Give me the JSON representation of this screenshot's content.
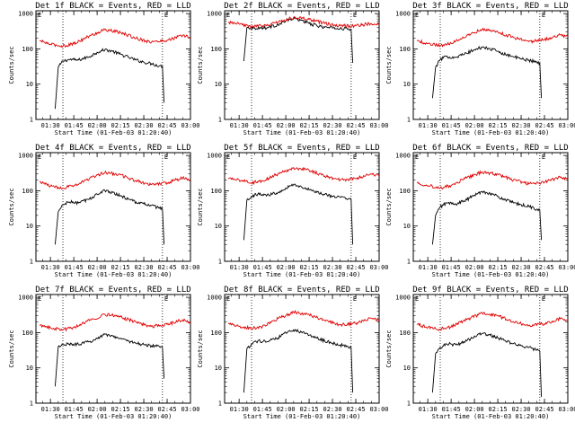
{
  "figure": {
    "ylabel": "Counts/sec",
    "xlabel": "Start Time (01-Feb-03 01:20:40)",
    "colors": {
      "events": "#000000",
      "lld": "#e00000"
    }
  },
  "chart_data": [
    {
      "type": "line",
      "title": "Det 1f BLACK = Events, RED = LLD",
      "xlabel": "Start Time (01-Feb-03 01:20:40)",
      "ylabel": "Counts/sec",
      "x_unit": "UT time",
      "xlim": [
        "01:20:40",
        "03:00"
      ],
      "ylim": [
        1,
        1200
      ],
      "yscale": "log",
      "xticks": [
        "01:30",
        "01:45",
        "02:00",
        "02:15",
        "02:30",
        "02:45",
        "03:00"
      ],
      "yticks": [
        "1",
        "10",
        "100",
        "1000"
      ],
      "markers": [
        "01:38",
        "02:42"
      ],
      "corner_labels": [
        "E",
        "E"
      ],
      "grid": false,
      "series": [
        {
          "name": "Events",
          "color": "#000000",
          "x": [
            "01:33",
            "01:35",
            "01:38",
            "01:42",
            "01:48",
            "01:55",
            "02:00",
            "02:05",
            "02:10",
            "02:15",
            "02:20",
            "02:25",
            "02:30",
            "02:35",
            "02:40",
            "02:42",
            "02:43"
          ],
          "y": [
            2,
            30,
            45,
            50,
            48,
            60,
            80,
            95,
            85,
            70,
            58,
            48,
            42,
            38,
            33,
            32,
            3
          ]
        },
        {
          "name": "LLD",
          "color": "#e00000",
          "x": [
            "01:23",
            "01:30",
            "01:38",
            "01:45",
            "01:55",
            "02:05",
            "02:15",
            "02:25",
            "02:35",
            "02:45",
            "02:55",
            "03:00"
          ],
          "y": [
            170,
            135,
            120,
            140,
            230,
            350,
            290,
            200,
            155,
            175,
            240,
            210
          ]
        }
      ]
    },
    {
      "type": "line",
      "title": "Det 2f BLACK = Events, RED = LLD",
      "xlabel": "Start Time (01-Feb-03 01:20:40)",
      "ylabel": "Counts/sec",
      "x_unit": "UT time",
      "xlim": [
        "01:20:40",
        "03:00"
      ],
      "ylim": [
        1,
        1200
      ],
      "yscale": "log",
      "xticks": [
        "01:30",
        "01:45",
        "02:00",
        "02:15",
        "02:30",
        "02:45",
        "03:00"
      ],
      "yticks": [
        "1",
        "10",
        "100",
        "1000"
      ],
      "markers": [
        "01:38",
        "02:42"
      ],
      "corner_labels": [
        "E",
        "E"
      ],
      "grid": false,
      "series": [
        {
          "name": "Events",
          "color": "#000000",
          "x": [
            "01:33",
            "01:35",
            "01:40",
            "01:48",
            "01:55",
            "02:00",
            "02:05",
            "02:10",
            "02:15",
            "02:20",
            "02:25",
            "02:30",
            "02:35",
            "02:40",
            "02:42",
            "02:43"
          ],
          "y": [
            45,
            400,
            390,
            400,
            480,
            620,
            720,
            650,
            520,
            450,
            410,
            390,
            380,
            370,
            360,
            40
          ]
        },
        {
          "name": "LLD",
          "color": "#e00000",
          "x": [
            "01:23",
            "01:30",
            "01:38",
            "01:45",
            "01:55",
            "02:05",
            "02:15",
            "02:25",
            "02:35",
            "02:45",
            "02:55",
            "03:00"
          ],
          "y": [
            560,
            500,
            430,
            450,
            560,
            780,
            680,
            520,
            450,
            450,
            520,
            480
          ]
        }
      ]
    },
    {
      "type": "line",
      "title": "Det 3f BLACK = Events, RED = LLD",
      "xlabel": "Start Time (01-Feb-03 01:20:40)",
      "ylabel": "Counts/sec",
      "x_unit": "UT time",
      "xlim": [
        "01:20:40",
        "03:00"
      ],
      "ylim": [
        1,
        1200
      ],
      "yscale": "log",
      "xticks": [
        "01:30",
        "01:45",
        "02:00",
        "02:15",
        "02:30",
        "02:45",
        "03:00"
      ],
      "yticks": [
        "1",
        "10",
        "100",
        "1000"
      ],
      "markers": [
        "01:38",
        "02:42"
      ],
      "corner_labels": [
        "E",
        "E"
      ],
      "grid": false,
      "series": [
        {
          "name": "Events",
          "color": "#000000",
          "x": [
            "01:33",
            "01:35",
            "01:38",
            "01:42",
            "01:48",
            "01:55",
            "02:00",
            "02:05",
            "02:10",
            "02:15",
            "02:20",
            "02:25",
            "02:30",
            "02:35",
            "02:40",
            "02:42",
            "02:43"
          ],
          "y": [
            4,
            30,
            50,
            60,
            58,
            75,
            95,
            110,
            100,
            85,
            70,
            60,
            52,
            48,
            42,
            40,
            4
          ]
        },
        {
          "name": "LLD",
          "color": "#e00000",
          "x": [
            "01:23",
            "01:30",
            "01:38",
            "01:45",
            "01:55",
            "02:05",
            "02:15",
            "02:25",
            "02:35",
            "02:45",
            "02:55",
            "03:00"
          ],
          "y": [
            170,
            140,
            125,
            145,
            240,
            360,
            300,
            210,
            160,
            180,
            250,
            220
          ]
        }
      ]
    },
    {
      "type": "line",
      "title": "Det 4f BLACK = Events, RED = LLD",
      "xlabel": "Start Time (01-Feb-03 01:20:40)",
      "ylabel": "Counts/sec",
      "x_unit": "UT time",
      "xlim": [
        "01:20:40",
        "03:00"
      ],
      "ylim": [
        1,
        1200
      ],
      "yscale": "log",
      "xticks": [
        "01:30",
        "01:45",
        "02:00",
        "02:15",
        "02:30",
        "02:45",
        "03:00"
      ],
      "yticks": [
        "1",
        "10",
        "100",
        "1000"
      ],
      "markers": [
        "01:38",
        "02:42"
      ],
      "corner_labels": [
        "E",
        "E"
      ],
      "grid": false,
      "series": [
        {
          "name": "Events",
          "color": "#000000",
          "x": [
            "01:33",
            "01:35",
            "01:38",
            "01:42",
            "01:48",
            "01:55",
            "02:00",
            "02:05",
            "02:10",
            "02:15",
            "02:20",
            "02:25",
            "02:30",
            "02:35",
            "02:40",
            "02:42",
            "02:43"
          ],
          "y": [
            3,
            25,
            40,
            48,
            45,
            58,
            80,
            100,
            90,
            72,
            58,
            48,
            42,
            38,
            32,
            30,
            3
          ]
        },
        {
          "name": "LLD",
          "color": "#e00000",
          "x": [
            "01:23",
            "01:30",
            "01:38",
            "01:45",
            "01:55",
            "02:05",
            "02:15",
            "02:25",
            "02:35",
            "02:45",
            "02:55",
            "03:00"
          ],
          "y": [
            180,
            135,
            120,
            140,
            220,
            330,
            280,
            190,
            150,
            170,
            230,
            200
          ]
        }
      ]
    },
    {
      "type": "line",
      "title": "Det 5f BLACK = Events, RED = LLD",
      "xlabel": "Start Time (01-Feb-03 01:20:40)",
      "ylabel": "Counts/sec",
      "x_unit": "UT time",
      "xlim": [
        "01:20:40",
        "03:00"
      ],
      "ylim": [
        1,
        1200
      ],
      "yscale": "log",
      "xticks": [
        "01:30",
        "01:45",
        "02:00",
        "02:15",
        "02:30",
        "02:45",
        "03:00"
      ],
      "yticks": [
        "1",
        "10",
        "100",
        "1000"
      ],
      "markers": [
        "01:38",
        "02:42"
      ],
      "corner_labels": [
        "E",
        "E"
      ],
      "grid": false,
      "series": [
        {
          "name": "Events",
          "color": "#000000",
          "x": [
            "01:33",
            "01:35",
            "01:38",
            "01:42",
            "01:48",
            "01:55",
            "02:00",
            "02:05",
            "02:10",
            "02:15",
            "02:20",
            "02:25",
            "02:30",
            "02:35",
            "02:40",
            "02:42",
            "02:43"
          ],
          "y": [
            4,
            55,
            70,
            80,
            75,
            90,
            120,
            150,
            130,
            105,
            90,
            78,
            70,
            65,
            58,
            55,
            3
          ]
        },
        {
          "name": "LLD",
          "color": "#e00000",
          "x": [
            "01:23",
            "01:30",
            "01:38",
            "01:45",
            "01:55",
            "02:05",
            "02:15",
            "02:25",
            "02:35",
            "02:45",
            "02:55",
            "03:00"
          ],
          "y": [
            220,
            200,
            170,
            190,
            300,
            450,
            380,
            260,
            200,
            220,
            300,
            270
          ]
        }
      ]
    },
    {
      "type": "line",
      "title": "Det 6f BLACK = Events, RED = LLD",
      "xlabel": "Start Time (01-Feb-03 01:20:40)",
      "ylabel": "Counts/sec",
      "x_unit": "UT time",
      "xlim": [
        "01:20:40",
        "03:00"
      ],
      "ylim": [
        1,
        1200
      ],
      "yscale": "log",
      "xticks": [
        "01:30",
        "01:45",
        "02:00",
        "02:15",
        "02:30",
        "02:45",
        "03:00"
      ],
      "yticks": [
        "1",
        "10",
        "100",
        "1000"
      ],
      "markers": [
        "01:38",
        "02:42"
      ],
      "corner_labels": [
        "E",
        "E"
      ],
      "grid": false,
      "series": [
        {
          "name": "Events",
          "color": "#000000",
          "x": [
            "01:33",
            "01:35",
            "01:38",
            "01:42",
            "01:48",
            "01:55",
            "02:00",
            "02:05",
            "02:10",
            "02:15",
            "02:20",
            "02:25",
            "02:30",
            "02:35",
            "02:40",
            "02:42",
            "02:43"
          ],
          "y": [
            3,
            20,
            35,
            45,
            42,
            55,
            75,
            95,
            85,
            68,
            55,
            45,
            40,
            36,
            30,
            28,
            4
          ]
        },
        {
          "name": "LLD",
          "color": "#e00000",
          "x": [
            "01:23",
            "01:30",
            "01:38",
            "01:45",
            "01:55",
            "02:05",
            "02:15",
            "02:25",
            "02:35",
            "02:45",
            "02:55",
            "03:00"
          ],
          "y": [
            170,
            140,
            120,
            140,
            230,
            340,
            290,
            200,
            155,
            175,
            240,
            210
          ]
        }
      ]
    },
    {
      "type": "line",
      "title": "Det 7f BLACK = Events, RED = LLD",
      "xlabel": "Start Time (01-Feb-03 01:20:40)",
      "ylabel": "Counts/sec",
      "x_unit": "UT time",
      "xlim": [
        "01:20:40",
        "03:00"
      ],
      "ylim": [
        1,
        1200
      ],
      "yscale": "log",
      "xticks": [
        "01:30",
        "01:45",
        "02:00",
        "02:15",
        "02:30",
        "02:45",
        "03:00"
      ],
      "yticks": [
        "1",
        "10",
        "100",
        "1000"
      ],
      "markers": [
        "01:38",
        "02:42"
      ],
      "corner_labels": [
        "E",
        "E"
      ],
      "grid": false,
      "series": [
        {
          "name": "Events",
          "color": "#000000",
          "x": [
            "01:33",
            "01:35",
            "01:38",
            "01:42",
            "01:48",
            "01:55",
            "02:00",
            "02:05",
            "02:10",
            "02:15",
            "02:20",
            "02:25",
            "02:30",
            "02:35",
            "02:40",
            "02:42",
            "02:43"
          ],
          "y": [
            3,
            40,
            45,
            48,
            46,
            55,
            70,
            90,
            80,
            68,
            58,
            50,
            45,
            42,
            40,
            38,
            5
          ]
        },
        {
          "name": "LLD",
          "color": "#e00000",
          "x": [
            "01:23",
            "01:30",
            "01:38",
            "01:45",
            "01:55",
            "02:05",
            "02:15",
            "02:25",
            "02:35",
            "02:45",
            "02:55",
            "03:00"
          ],
          "y": [
            160,
            135,
            120,
            140,
            220,
            330,
            280,
            195,
            150,
            170,
            230,
            200
          ]
        }
      ]
    },
    {
      "type": "line",
      "title": "Det 8f BLACK = Events, RED = LLD",
      "xlabel": "Start Time (01-Feb-03 01:20:40)",
      "ylabel": "Counts/sec",
      "x_unit": "UT time",
      "xlim": [
        "01:20:40",
        "03:00"
      ],
      "ylim": [
        1,
        1200
      ],
      "yscale": "log",
      "xticks": [
        "01:30",
        "01:45",
        "02:00",
        "02:15",
        "02:30",
        "02:45",
        "03:00"
      ],
      "yticks": [
        "1",
        "10",
        "100",
        "1000"
      ],
      "markers": [
        "01:38",
        "02:42"
      ],
      "corner_labels": [
        "E",
        "E"
      ],
      "grid": false,
      "series": [
        {
          "name": "Events",
          "color": "#000000",
          "x": [
            "01:33",
            "01:35",
            "01:38",
            "01:42",
            "01:48",
            "01:55",
            "02:00",
            "02:05",
            "02:10",
            "02:15",
            "02:20",
            "02:25",
            "02:30",
            "02:35",
            "02:40",
            "02:42",
            "02:43"
          ],
          "y": [
            2,
            35,
            48,
            58,
            55,
            70,
            100,
            120,
            105,
            85,
            70,
            58,
            50,
            45,
            40,
            38,
            2
          ]
        },
        {
          "name": "LLD",
          "color": "#e00000",
          "x": [
            "01:23",
            "01:30",
            "01:38",
            "01:45",
            "01:55",
            "02:05",
            "02:15",
            "02:25",
            "02:35",
            "02:45",
            "02:55",
            "03:00"
          ],
          "y": [
            180,
            150,
            130,
            150,
            250,
            380,
            320,
            220,
            165,
            185,
            255,
            225
          ]
        }
      ]
    },
    {
      "type": "line",
      "title": "Det 9f BLACK = Events, RED = LLD",
      "xlabel": "Start Time (01-Feb-03 01:20:40)",
      "ylabel": "Counts/sec",
      "x_unit": "UT time",
      "xlim": [
        "01:20:40",
        "03:00"
      ],
      "ylim": [
        1,
        1200
      ],
      "yscale": "log",
      "xticks": [
        "01:30",
        "01:45",
        "02:00",
        "02:15",
        "02:30",
        "02:45",
        "03:00"
      ],
      "yticks": [
        "1",
        "10",
        "100",
        "1000"
      ],
      "markers": [
        "01:38",
        "02:42"
      ],
      "corner_labels": [
        "E",
        "E"
      ],
      "grid": false,
      "series": [
        {
          "name": "Events",
          "color": "#000000",
          "x": [
            "01:33",
            "01:35",
            "01:38",
            "01:42",
            "01:48",
            "01:55",
            "02:00",
            "02:05",
            "02:10",
            "02:15",
            "02:20",
            "02:25",
            "02:30",
            "02:35",
            "02:40",
            "02:42",
            "02:43"
          ],
          "y": [
            2,
            25,
            38,
            48,
            45,
            58,
            80,
            95,
            85,
            70,
            58,
            48,
            42,
            38,
            32,
            30,
            1.5
          ]
        },
        {
          "name": "LLD",
          "color": "#e00000",
          "x": [
            "01:23",
            "01:30",
            "01:38",
            "01:45",
            "01:55",
            "02:05",
            "02:15",
            "02:25",
            "02:35",
            "02:45",
            "02:55",
            "03:00"
          ],
          "y": [
            170,
            140,
            125,
            145,
            235,
            350,
            295,
            205,
            158,
            178,
            245,
            215
          ]
        }
      ]
    }
  ]
}
